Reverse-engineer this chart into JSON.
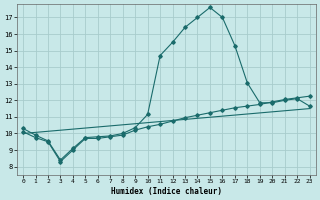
{
  "xlabel": "Humidex (Indice chaleur)",
  "bg_color": "#c8e8e8",
  "line_color": "#1a6b6b",
  "grid_color": "#a8cccc",
  "xlim": [
    -0.5,
    23.5
  ],
  "ylim": [
    7.5,
    17.8
  ],
  "yticks": [
    8,
    9,
    10,
    11,
    12,
    13,
    14,
    15,
    16,
    17
  ],
  "xticks": [
    0,
    1,
    2,
    3,
    4,
    5,
    6,
    7,
    8,
    9,
    10,
    11,
    12,
    13,
    14,
    15,
    16,
    17,
    18,
    19,
    20,
    21,
    22,
    23
  ],
  "curve1_x": [
    0,
    1,
    2,
    3,
    4,
    5,
    6,
    7,
    8,
    9,
    10,
    11,
    12,
    13,
    14,
    15,
    16,
    17,
    18,
    19,
    20,
    21,
    22,
    23
  ],
  "curve1_y": [
    10.3,
    9.9,
    9.55,
    8.4,
    9.1,
    9.75,
    9.8,
    9.85,
    10.0,
    10.35,
    11.15,
    14.7,
    15.5,
    16.4,
    17.0,
    17.6,
    17.0,
    15.3,
    13.05,
    11.85,
    11.85,
    12.0,
    12.1,
    11.65
  ],
  "curve2_x": [
    0,
    1,
    2,
    3,
    4,
    5,
    6,
    7,
    8,
    9,
    10,
    11,
    12,
    13,
    14,
    15,
    16,
    17,
    18,
    19,
    20,
    21,
    22,
    23
  ],
  "curve2_y": [
    10.1,
    9.75,
    9.5,
    8.3,
    9.0,
    9.7,
    9.7,
    9.8,
    9.9,
    10.2,
    10.4,
    10.55,
    10.75,
    10.95,
    11.1,
    11.25,
    11.4,
    11.55,
    11.65,
    11.75,
    11.9,
    12.05,
    12.15,
    12.25
  ],
  "curve3_x": [
    0,
    23
  ],
  "curve3_y": [
    10.0,
    11.5
  ]
}
